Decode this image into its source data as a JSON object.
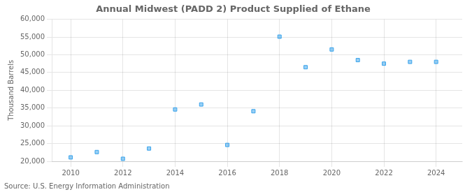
{
  "chart_data": {
    "type": "scatter",
    "title": "Annual Midwest (PADD 2) Product Supplied of Ethane",
    "y_label": "Thousand Barrels",
    "annotations": [
      "Source: U.S. Energy Information Administration"
    ],
    "x": [
      2010,
      2011,
      2012,
      2013,
      2014,
      2015,
      2016,
      2017,
      2018,
      2019,
      2020,
      2021,
      2022,
      2023,
      2024
    ],
    "values": [
      21100,
      22600,
      20700,
      23600,
      34600,
      36000,
      24600,
      34100,
      55100,
      46500,
      51500,
      48500,
      47500,
      48000,
      48000
    ],
    "marker": "square",
    "xlim": [
      2009.3,
      2025.0
    ],
    "xticks": [
      2010,
      2012,
      2014,
      2016,
      2018,
      2020,
      2022,
      2024
    ],
    "ylim": [
      20000,
      60000
    ],
    "yticks": [
      {
        "value": 20000,
        "label": "20,000"
      },
      {
        "value": 25000,
        "label": "25,000"
      },
      {
        "value": 30000,
        "label": "30,000"
      },
      {
        "value": 35000,
        "label": "35,000"
      },
      {
        "value": 40000,
        "label": "40,000"
      },
      {
        "value": 45000,
        "label": "45,000"
      },
      {
        "value": 50000,
        "label": "50,000"
      },
      {
        "value": 55000,
        "label": "55,000"
      },
      {
        "value": 60000,
        "label": "60,000"
      }
    ],
    "grid": true
  }
}
